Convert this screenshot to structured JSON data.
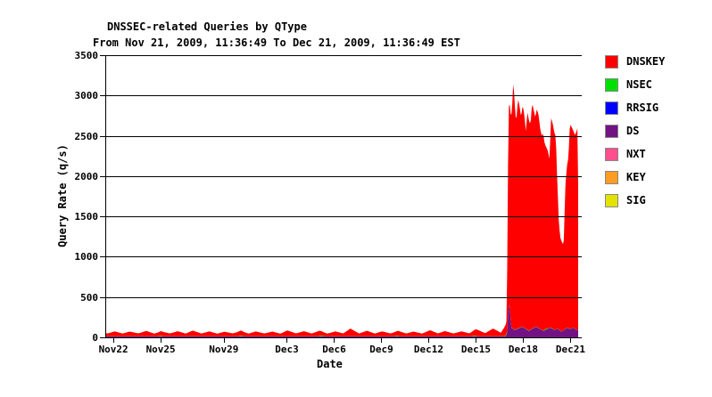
{
  "colors": {
    "background": "#ffffff",
    "axis": "#000000",
    "grid": "#000000",
    "text": "#000000",
    "legend_swatch_border": "#888888"
  },
  "chart_data": {
    "type": "area",
    "style": "rrdtool stacked area, horizontal gridlines drawn over data",
    "title": "DNSSEC-related Queries by QType",
    "subtitle": "From Nov 21, 2009, 11:36:49 To Dec 21, 2009, 11:36:49 EST",
    "xlabel": "Date",
    "ylabel": "Query Rate (q/s)",
    "x_unit_days_since": "Nov 21, 2009 11:36:49 EST",
    "xlim": [
      0,
      30
    ],
    "ylim": [
      0,
      3500
    ],
    "grid_interval_y": 500,
    "legend_position": "right",
    "y_ticks": [
      0,
      500,
      1000,
      1500,
      2000,
      2500,
      3000,
      3500
    ],
    "x_ticks": [
      {
        "label": "Nov22",
        "day": 0.517
      },
      {
        "label": "Nov25",
        "day": 3.517
      },
      {
        "label": "Nov29",
        "day": 7.517
      },
      {
        "label": "Dec3",
        "day": 11.517
      },
      {
        "label": "Dec6",
        "day": 14.517
      },
      {
        "label": "Dec9",
        "day": 17.517
      },
      {
        "label": "Dec12",
        "day": 20.517
      },
      {
        "label": "Dec15",
        "day": 23.517
      },
      {
        "label": "Dec18",
        "day": 26.517
      },
      {
        "label": "Dec21",
        "day": 29.517
      }
    ],
    "stack_order_bottom_to_top": [
      "SIG",
      "KEY",
      "NXT",
      "DS",
      "RRSIG",
      "NSEC",
      "DNSKEY"
    ],
    "series": [
      {
        "name": "DNSKEY",
        "color": "#ff0000",
        "points": [
          [
            0.0,
            40
          ],
          [
            0.15,
            34
          ],
          [
            0.6,
            60
          ],
          [
            1.1,
            33
          ],
          [
            1.55,
            58
          ],
          [
            2.1,
            35
          ],
          [
            2.6,
            66
          ],
          [
            3.1,
            33
          ],
          [
            3.55,
            58
          ],
          [
            4.1,
            35
          ],
          [
            4.6,
            62
          ],
          [
            5.1,
            33
          ],
          [
            5.55,
            70
          ],
          [
            6.1,
            34
          ],
          [
            6.6,
            60
          ],
          [
            7.1,
            32
          ],
          [
            7.55,
            56
          ],
          [
            8.1,
            35
          ],
          [
            8.6,
            65
          ],
          [
            9.1,
            33
          ],
          [
            9.55,
            60
          ],
          [
            10.1,
            34
          ],
          [
            10.6,
            58
          ],
          [
            11.1,
            32
          ],
          [
            11.55,
            72
          ],
          [
            12.1,
            35
          ],
          [
            12.6,
            62
          ],
          [
            13.1,
            34
          ],
          [
            13.55,
            66
          ],
          [
            14.1,
            33
          ],
          [
            14.6,
            60
          ],
          [
            15.1,
            35
          ],
          [
            15.55,
            95
          ],
          [
            16.1,
            34
          ],
          [
            16.6,
            68
          ],
          [
            17.1,
            33
          ],
          [
            17.55,
            60
          ],
          [
            18.1,
            35
          ],
          [
            18.6,
            64
          ],
          [
            19.1,
            34
          ],
          [
            19.55,
            58
          ],
          [
            20.1,
            33
          ],
          [
            20.6,
            75
          ],
          [
            21.1,
            35
          ],
          [
            21.55,
            64
          ],
          [
            22.1,
            34
          ],
          [
            22.6,
            60
          ],
          [
            23.1,
            36
          ],
          [
            23.55,
            85
          ],
          [
            24.1,
            38
          ],
          [
            24.6,
            95
          ],
          [
            25.1,
            42
          ],
          [
            25.35,
            120
          ],
          [
            25.45,
            150
          ],
          [
            25.52,
            1050
          ],
          [
            25.58,
            2450
          ],
          [
            25.65,
            2500
          ],
          [
            25.72,
            2550
          ],
          [
            25.8,
            2700
          ],
          [
            25.88,
            3050
          ],
          [
            25.95,
            2900
          ],
          [
            26.02,
            2650
          ],
          [
            26.08,
            2600
          ],
          [
            26.18,
            2850
          ],
          [
            26.28,
            2750
          ],
          [
            26.38,
            2600
          ],
          [
            26.48,
            2750
          ],
          [
            26.58,
            2650
          ],
          [
            26.68,
            2450
          ],
          [
            26.78,
            2700
          ],
          [
            26.88,
            2600
          ],
          [
            26.98,
            2550
          ],
          [
            27.08,
            2800
          ],
          [
            27.18,
            2700
          ],
          [
            27.28,
            2600
          ],
          [
            27.38,
            2700
          ],
          [
            27.48,
            2650
          ],
          [
            27.58,
            2500
          ],
          [
            27.68,
            2400
          ],
          [
            27.78,
            2450
          ],
          [
            27.88,
            2300
          ],
          [
            27.98,
            2250
          ],
          [
            28.08,
            2200
          ],
          [
            28.18,
            2100
          ],
          [
            28.28,
            2600
          ],
          [
            28.38,
            2550
          ],
          [
            28.48,
            2450
          ],
          [
            28.58,
            2400
          ],
          [
            28.68,
            1800
          ],
          [
            28.78,
            1300
          ],
          [
            28.88,
            1150
          ],
          [
            28.98,
            1100
          ],
          [
            29.08,
            1050
          ],
          [
            29.18,
            1750
          ],
          [
            29.28,
            2000
          ],
          [
            29.38,
            2100
          ],
          [
            29.48,
            2550
          ],
          [
            29.58,
            2500
          ],
          [
            29.68,
            2450
          ],
          [
            29.78,
            2400
          ],
          [
            29.88,
            2450
          ],
          [
            29.95,
            2500
          ],
          [
            30.0,
            1800
          ]
        ]
      },
      {
        "name": "NSEC",
        "color": "#00e000",
        "points": [
          [
            0,
            2
          ],
          [
            3.3,
            2
          ],
          [
            3.5,
            8
          ],
          [
            3.7,
            2
          ],
          [
            8.4,
            2
          ],
          [
            8.6,
            9
          ],
          [
            8.8,
            2
          ],
          [
            13.5,
            2
          ],
          [
            13.7,
            10
          ],
          [
            13.9,
            2
          ],
          [
            18.3,
            2
          ],
          [
            18.5,
            8
          ],
          [
            18.7,
            2
          ],
          [
            23.2,
            2
          ],
          [
            23.4,
            9
          ],
          [
            23.6,
            2
          ],
          [
            25.3,
            3
          ],
          [
            25.45,
            14
          ],
          [
            25.6,
            3
          ],
          [
            27.8,
            3
          ],
          [
            27.95,
            12
          ],
          [
            28.1,
            3
          ],
          [
            30,
            2
          ]
        ]
      },
      {
        "name": "RRSIG",
        "color": "#0000ff",
        "points": [
          [
            0,
            0
          ],
          [
            30,
            0
          ]
        ]
      },
      {
        "name": "DS",
        "color": "#731284",
        "points": [
          [
            0,
            12
          ],
          [
            25.4,
            12
          ],
          [
            25.5,
            60
          ],
          [
            25.58,
            400
          ],
          [
            25.66,
            380
          ],
          [
            25.75,
            120
          ],
          [
            26.0,
            90
          ],
          [
            26.2,
            110
          ],
          [
            26.45,
            130
          ],
          [
            26.7,
            100
          ],
          [
            26.9,
            80
          ],
          [
            27.1,
            110
          ],
          [
            27.35,
            130
          ],
          [
            27.6,
            100
          ],
          [
            27.8,
            80
          ],
          [
            28.0,
            100
          ],
          [
            28.25,
            120
          ],
          [
            28.5,
            90
          ],
          [
            28.7,
            110
          ],
          [
            28.9,
            70
          ],
          [
            29.1,
            90
          ],
          [
            29.3,
            120
          ],
          [
            29.5,
            100
          ],
          [
            29.7,
            120
          ],
          [
            29.9,
            90
          ],
          [
            30.0,
            100
          ]
        ]
      },
      {
        "name": "NXT",
        "color": "#ff4f8c",
        "points": [
          [
            0,
            0
          ],
          [
            30,
            0
          ]
        ]
      },
      {
        "name": "KEY",
        "color": "#ff9d23",
        "points": [
          [
            0,
            0
          ],
          [
            30,
            0
          ]
        ]
      },
      {
        "name": "SIG",
        "color": "#e3e300",
        "points": [
          [
            0,
            0
          ],
          [
            30,
            0
          ]
        ]
      }
    ]
  }
}
